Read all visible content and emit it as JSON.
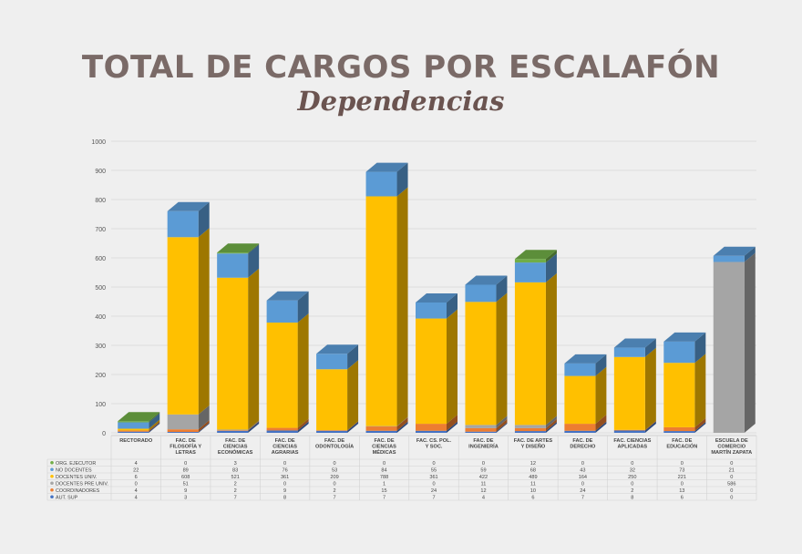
{
  "title": "TOTAL DE CARGOS POR ESCALAFÓN",
  "subtitle": "Dependencias",
  "chart_data": {
    "type": "bar",
    "stacked": true,
    "three_d": true,
    "ylim": [
      0,
      1000
    ],
    "yticks": [
      0,
      100,
      200,
      300,
      400,
      500,
      600,
      700,
      800,
      900,
      1000
    ],
    "grid": true,
    "legend": "data-table-left",
    "categories": [
      "RECTORADO",
      "FAC. DE FILOSOFÍA Y LETRAS",
      "FAC. DE CIENCIAS ECONÓMICAS",
      "FAC. DE CIENCIAS AGRARIAS",
      "FAC. DE ODONTOLOGÍA",
      "FAC. DE CIENCIAS MÉDICAS",
      "FAC. CS. POL. Y SOC.",
      "FAC. DE INGENIERÍA",
      "FAC. DE ARTES Y DISEÑO",
      "FAC. DE DERECHO",
      "FAC. CIENCIAS APLICADAS",
      "FAC. DE EDUCACIÓN",
      "ESCUELA DE COMERCIO MARTÍN ZAPATA"
    ],
    "series": [
      {
        "name": "AUT. SUP",
        "color": "#4472c4",
        "values": [
          4,
          3,
          7,
          8,
          7,
          7,
          7,
          4,
          6,
          7,
          8,
          6,
          0
        ]
      },
      {
        "name": "COORDINADORES",
        "color": "#ed7d31",
        "values": [
          4,
          9,
          2,
          9,
          2,
          15,
          24,
          12,
          10,
          24,
          2,
          13,
          0
        ]
      },
      {
        "name": "DOCENTES PRE UNIV.",
        "color": "#a5a5a5",
        "values": [
          0,
          51,
          2,
          0,
          0,
          1,
          0,
          11,
          11,
          0,
          0,
          0,
          586
        ]
      },
      {
        "name": "DOCENTES UNIV.",
        "color": "#ffc000",
        "values": [
          6,
          608,
          521,
          361,
          209,
          788,
          361,
          422,
          489,
          164,
          250,
          221,
          0
        ]
      },
      {
        "name": "NO DOCENTES",
        "color": "#5b9bd5",
        "values": [
          22,
          89,
          83,
          76,
          53,
          84,
          55,
          59,
          68,
          43,
          32,
          73,
          21
        ]
      },
      {
        "name": "ORG. EJECUTOR",
        "color": "#70ad47",
        "values": [
          4,
          0,
          3,
          0,
          0,
          0,
          0,
          0,
          12,
          0,
          0,
          0,
          0
        ]
      }
    ]
  }
}
